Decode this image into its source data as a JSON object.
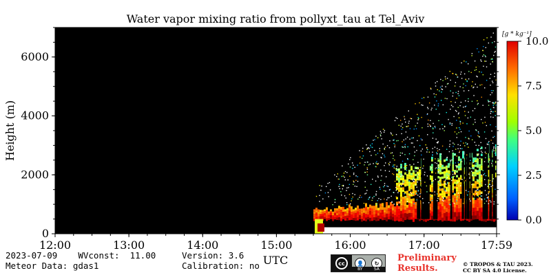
{
  "chart_data": {
    "type": "heatmap",
    "title": "Water vapor mixing ratio from pollyxt_tau at Tel_Aviv",
    "ylabel": "Height (m)",
    "xlabel": "UTC",
    "x_ticks": [
      "12:00",
      "13:00",
      "14:00",
      "15:00",
      "16:00",
      "17:00",
      "17:59"
    ],
    "y_ticks": [
      "0",
      "2000",
      "4000",
      "6000"
    ],
    "y_range": [
      0,
      7000
    ],
    "colorbar": {
      "unit_label": "[g * kg⁻¹]",
      "ticks": [
        "0.0",
        "2.5",
        "5.0",
        "7.5",
        "10.0"
      ],
      "range": [
        0.0,
        10.0
      ],
      "colormap": "jet"
    },
    "background_color": "#000000",
    "data_regions": [
      {
        "desc": "valid measurements begin",
        "time_start": "15:30",
        "time_end": "17:59"
      },
      {
        "desc": "moist near-surface layer",
        "height_range_m": [
          0,
          1000
        ],
        "value_range": [
          7.5,
          10.0
        ]
      },
      {
        "desc": "lowest layer masked (white)",
        "height_range_m": [
          0,
          500
        ]
      },
      {
        "desc": "scattered retrieval values aloft",
        "height_range_m": [
          1000,
          7000
        ],
        "value_range": [
          2.5,
          7.5
        ]
      }
    ]
  },
  "footer": {
    "date_line": "2023-07-09    WVconst:  11.00",
    "meteor_line": "Meteor Data: gdas1",
    "version_line": "Version: 3.6",
    "calibration_line": "Calibration: no",
    "preliminary_line1": "Preliminary",
    "preliminary_line2": "Results.",
    "copyright_line1": "© TROPOS & TAU 2023.",
    "copyright_line2": "CC BY SA 4.0 License.",
    "cc_badge": "cc",
    "cc_by": "BY",
    "cc_sa": "SA"
  },
  "colors": {
    "preliminary": "#e8332c",
    "plot_background": "#000000"
  }
}
